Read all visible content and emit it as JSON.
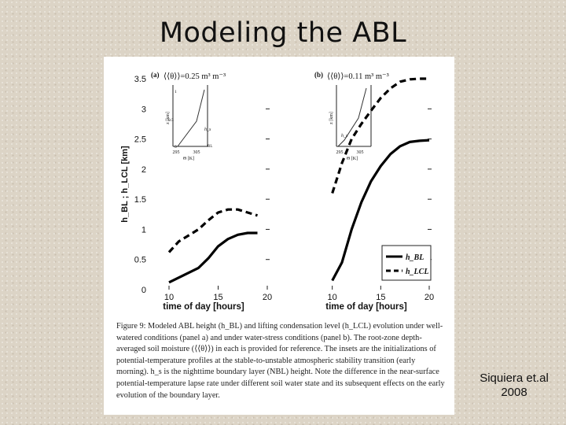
{
  "slide": {
    "title": "Modeling the ABL",
    "credit_line1": "Siquiera et.al",
    "credit_line2": "2008"
  },
  "figure": {
    "caption": "Figure 9: Modeled ABL height (h_BL) and lifting condensation level (h_LCL) evolution under well-watered conditions (panel a) and under water-stress conditions (panel b). The root-zone depth-averaged soil moisture (⟨⟨θ⟩⟩) in each is provided for reference. The insets are the initializations of potential-temperature profiles at the stable-to-unstable atmospheric stability transition (early morning). h_s is the nighttime boundary layer (NBL) height. Note the difference in the near-surface potential-temperature lapse rate under different soil water state and its subsequent effects on the early evolution of the boundary layer."
  },
  "chart_data": [
    {
      "type": "line",
      "panel_label": "(a)",
      "annotation": "⟨⟨θ⟩⟩=0.25 m³ m⁻³",
      "xlabel": "time of day [hours]",
      "ylabel": "h_BL ; h_LCL [km]",
      "xlim": [
        8,
        20
      ],
      "ylim": [
        0,
        3.5
      ],
      "x_ticks": [
        10,
        15,
        20
      ],
      "y_ticks": [
        0,
        0.5,
        1,
        1.5,
        2,
        2.5,
        3,
        3.5
      ],
      "grid": false,
      "series": [
        {
          "name": "h_BL",
          "style": "solid",
          "x": [
            10,
            11,
            12,
            13,
            14,
            15,
            16,
            17,
            18,
            19
          ],
          "y": [
            0.12,
            0.2,
            0.28,
            0.36,
            0.52,
            0.72,
            0.84,
            0.91,
            0.94,
            0.94
          ]
        },
        {
          "name": "h_LCL",
          "style": "dashed",
          "x": [
            10,
            11,
            12,
            13,
            14,
            15,
            16,
            17,
            18,
            19
          ],
          "y": [
            0.62,
            0.8,
            0.9,
            1.0,
            1.15,
            1.28,
            1.33,
            1.33,
            1.28,
            1.23
          ]
        }
      ],
      "inset": {
        "x_ticks": [
          "295",
          "305"
        ],
        "xlabel": "Θ [K]",
        "ylabel": "z [km]",
        "y_ticks": [
          "0",
          "0.5",
          "1"
        ],
        "marker_label": "h_s",
        "bl_label": "BL"
      }
    },
    {
      "type": "line",
      "panel_label": "(b)",
      "annotation": "⟨⟨θ⟩⟩=0.11 m³ m⁻³",
      "xlabel": "time of day [hours]",
      "xlim": [
        8,
        20
      ],
      "ylim": [
        0,
        3.5
      ],
      "x_ticks": [
        10,
        15,
        20
      ],
      "grid": false,
      "legend_placement": "bottom-right",
      "series": [
        {
          "name": "h_BL",
          "style": "solid",
          "x": [
            10,
            11,
            12,
            13,
            14,
            15,
            16,
            17,
            18,
            19,
            20
          ],
          "y": [
            0.15,
            0.45,
            1.0,
            1.45,
            1.8,
            2.05,
            2.25,
            2.38,
            2.45,
            2.47,
            2.48
          ]
        },
        {
          "name": "h_LCL",
          "style": "dashed",
          "x": [
            10,
            11,
            12,
            13,
            14,
            15,
            16,
            17,
            18,
            19,
            20
          ],
          "y": [
            1.6,
            2.1,
            2.5,
            2.75,
            2.97,
            3.18,
            3.34,
            3.45,
            3.49,
            3.5,
            3.5
          ]
        }
      ],
      "inset": {
        "x_ticks": [
          "295",
          "305"
        ],
        "xlabel": "Θ [K]",
        "ylabel": "z [km]",
        "marker_label": "h_s"
      }
    }
  ]
}
